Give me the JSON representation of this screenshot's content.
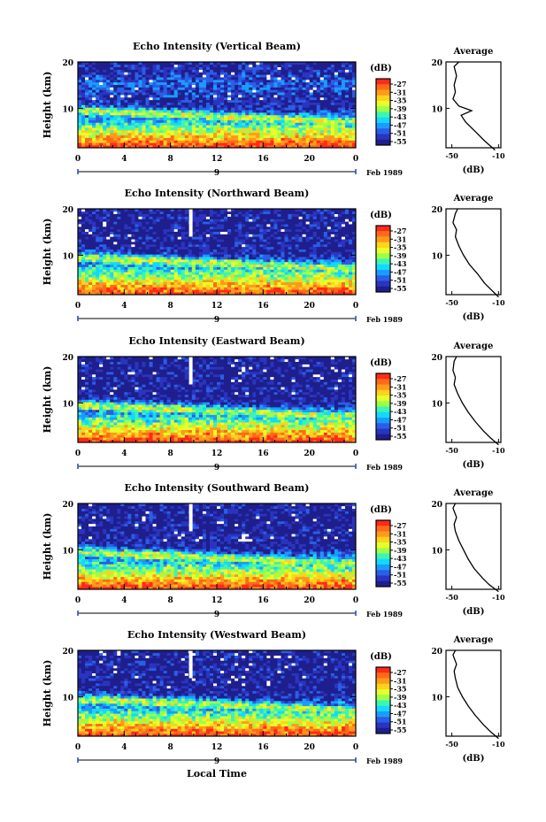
{
  "chart_data": {
    "type": "heatmap",
    "panels": [
      {
        "title": "Echo Intensity (Vertical Beam)",
        "avg_profile": [
          [
            -13,
            1
          ],
          [
            -22,
            3
          ],
          [
            -30,
            5
          ],
          [
            -38,
            7
          ],
          [
            -42,
            8.5
          ],
          [
            -33,
            9.5
          ],
          [
            -44,
            10.5
          ],
          [
            -49,
            12
          ],
          [
            -47,
            13.5
          ],
          [
            -48,
            15
          ],
          [
            -46,
            17
          ],
          [
            -48,
            19
          ],
          [
            -44,
            20
          ]
        ]
      },
      {
        "title": "Echo Intensity (Northward Beam)",
        "avg_profile": [
          [
            -10,
            1
          ],
          [
            -16,
            2.5
          ],
          [
            -22,
            4
          ],
          [
            -28,
            6
          ],
          [
            -35,
            8
          ],
          [
            -40,
            10
          ],
          [
            -44,
            12
          ],
          [
            -47,
            14
          ],
          [
            -46,
            15.5
          ],
          [
            -49,
            17
          ],
          [
            -47,
            19
          ],
          [
            -45,
            20
          ]
        ]
      },
      {
        "title": "Echo Intensity (Eastward Beam)",
        "avg_profile": [
          [
            -10,
            1
          ],
          [
            -17,
            2.5
          ],
          [
            -23,
            4
          ],
          [
            -30,
            6
          ],
          [
            -36,
            8
          ],
          [
            -41,
            10
          ],
          [
            -45,
            12
          ],
          [
            -48,
            14
          ],
          [
            -47,
            15.5
          ],
          [
            -49,
            17
          ],
          [
            -48,
            19
          ],
          [
            -46,
            20
          ]
        ]
      },
      {
        "title": "Echo Intensity (Southward Beam)",
        "avg_profile": [
          [
            -10,
            1
          ],
          [
            -18,
            2.5
          ],
          [
            -24,
            4
          ],
          [
            -31,
            6
          ],
          [
            -36,
            8
          ],
          [
            -40,
            10
          ],
          [
            -44,
            12
          ],
          [
            -47,
            14
          ],
          [
            -48,
            15.5
          ],
          [
            -46,
            17
          ],
          [
            -49,
            19
          ],
          [
            -47,
            20
          ]
        ]
      },
      {
        "title": "Echo Intensity (Westward Beam)",
        "avg_profile": [
          [
            -10,
            1
          ],
          [
            -17,
            2.5
          ],
          [
            -23,
            4
          ],
          [
            -30,
            6
          ],
          [
            -36,
            8
          ],
          [
            -41,
            10
          ],
          [
            -45,
            12
          ],
          [
            -47,
            14
          ],
          [
            -48,
            15.5
          ],
          [
            -46,
            17
          ],
          [
            -49,
            19
          ],
          [
            -47,
            20
          ]
        ]
      }
    ],
    "ylabel": "Height (km)",
    "ylim": [
      1.5,
      20
    ],
    "yticks": [
      "10",
      "20"
    ],
    "xticks": [
      "0",
      "4",
      "8",
      "12",
      "16",
      "20",
      "0"
    ],
    "xlim": [
      0,
      24
    ],
    "date_label": "9",
    "month_label": "Feb 1989",
    "xlabel": "Local Time",
    "colorbar": {
      "unit": "(dB)",
      "labels": [
        "-27",
        "-31",
        "-35",
        "-39",
        "-43",
        "-47",
        "-51",
        "-55"
      ],
      "colors": [
        "#ff2a1a",
        "#ff6a18",
        "#ff9a1c",
        "#ffd21c",
        "#e6ff2a",
        "#9cff4a",
        "#3cf5b4",
        "#14d8ff",
        "#1a9cff",
        "#2a5ee6",
        "#2a34c0",
        "#1e1e8c"
      ]
    },
    "avg_title": "Average",
    "avg_xlabel": "(dB)",
    "avg_xticks": [
      "-50",
      "-10"
    ],
    "avg_xlim": [
      -55,
      -8
    ],
    "avg_yticks": [
      "10",
      "20"
    ]
  }
}
